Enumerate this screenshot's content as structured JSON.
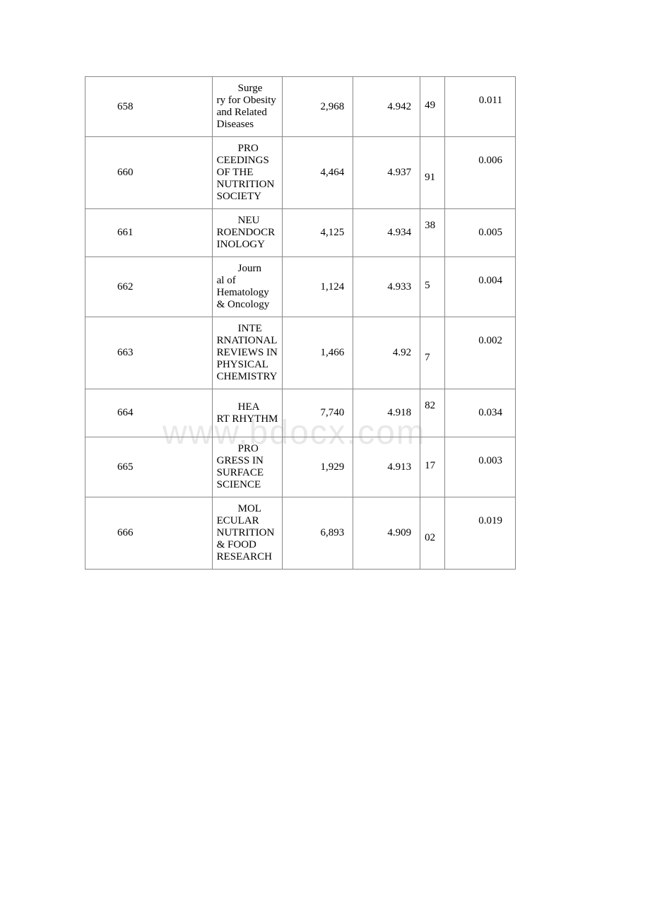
{
  "watermark": "www.bdocx.com",
  "table": {
    "columns": [
      {
        "width": 180,
        "align": "left"
      },
      {
        "width": 100,
        "align": "left"
      },
      {
        "width": 100,
        "align": "right"
      },
      {
        "width": 95,
        "align": "right"
      },
      {
        "width": 35,
        "align": "left"
      },
      {
        "width": 100,
        "align": "right"
      }
    ],
    "border_color": "#888888",
    "text_color": "#000000",
    "font_family": "Times New Roman",
    "font_size": 15,
    "background_color": "#ffffff",
    "rows": [
      {
        "id": "658",
        "title_first": "Surge",
        "title_rest": "ry for Obesity and Related Diseases",
        "val1": "2,968",
        "val2": "4.942",
        "val3": "49",
        "val4": "0.011"
      },
      {
        "id": "660",
        "title_first": "PRO",
        "title_rest": "CEEDINGS OF THE NUTRITION SOCIETY",
        "val1": "4,464",
        "val2": "4.937",
        "val3": "91",
        "val4": "0.006"
      },
      {
        "id": "661",
        "title_first": "NEU",
        "title_rest": "ROENDOCRINOLOGY",
        "val1": "4,125",
        "val2": "4.934",
        "val3": "38",
        "val4": "0.005"
      },
      {
        "id": "662",
        "title_first": "Journ",
        "title_rest": "al of Hematology & Oncology",
        "val1": "1,124",
        "val2": "4.933",
        "val3": "5",
        "val4": "0.004"
      },
      {
        "id": "663",
        "title_first": "INTE",
        "title_rest": "RNATIONAL REVIEWS IN PHYSICAL CHEMISTRY",
        "val1": "1,466",
        "val2": "4.92",
        "val3": "7",
        "val4": "0.002"
      },
      {
        "id": "664",
        "title_first": "HEA",
        "title_rest": "RT RHYTHM",
        "val1": "7,740",
        "val2": "4.918",
        "val3": "82",
        "val4": "0.034"
      },
      {
        "id": "665",
        "title_first": "PRO",
        "title_rest": "GRESS IN SURFACE SCIENCE",
        "val1": "1,929",
        "val2": "4.913",
        "val3": "17",
        "val4": "0.003"
      },
      {
        "id": "666",
        "title_first": "MOL",
        "title_rest": "ECULAR NUTRITION & FOOD RESEARCH",
        "val1": "6,893",
        "val2": "4.909",
        "val3": "02",
        "val4": "0.019"
      }
    ]
  }
}
